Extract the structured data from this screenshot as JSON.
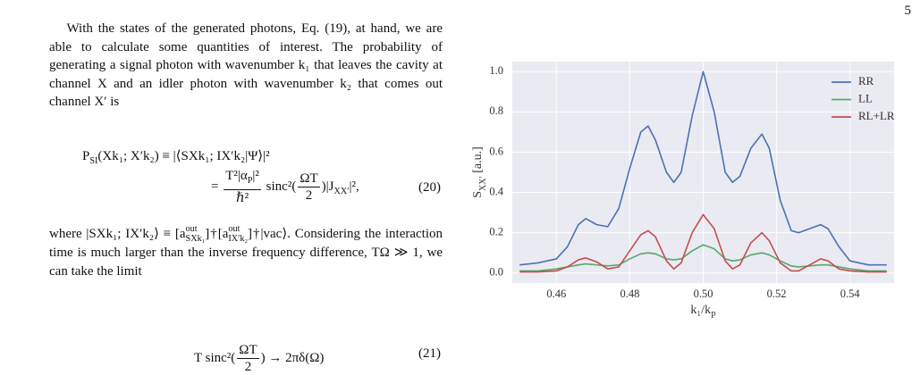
{
  "page_number": "5",
  "paragraphs": [
    "With the states of the generated photons, Eq. (19), at hand, we are able to calculate some quantities of interest. The probability of generating a signal photon with wavenumber k₁ that leaves the cavity at channel X and an idler photon with wavenumber k₂ that comes out channel X′ is",
    [
      "where |SXk₁; IX′k₂⟩ ≡ [a",
      {
        "sup": "out",
        "sub": "SXk₁"
      },
      "]†[a",
      {
        "sup": "out",
        "sub": "IX′k₂"
      },
      "]†|vac⟩. Considering the interaction time is much larger than the inverse frequency difference, TΩ ≫ 1, we can take the limit"
    ]
  ],
  "equations": [
    {
      "lines": [
        [
          "P",
          {
            "sub": "SI"
          },
          "(Xk₁; X′k₂) ≡ |⟨SXk₁; IX′k₂|Ψ⟩|²"
        ],
        [
          "= ",
          {
            "num": [
              "T²|α",
              {
                "sub": "P"
              },
              "|²"
            ],
            "den": "ℏ²"
          },
          " sinc²(",
          {
            "num": "ΩT",
            "den": "2"
          },
          ")|J",
          {
            "sub": "XX′"
          },
          "|²,"
        ]
      ],
      "number": "(20)"
    },
    {
      "lines": [
        [
          "T sinc²(",
          {
            "num": "ΩT",
            "den": "2"
          },
          ") → 2πδ(Ω)"
        ]
      ],
      "number": "(21)"
    }
  ],
  "chart_data": {
    "type": "line",
    "xlabel": [
      "k₁/k",
      {
        "sub": "P"
      }
    ],
    "ylabel": [
      "S",
      {
        "sub": "XX′"
      },
      " [a.u.]"
    ],
    "x": [
      0.45,
      0.455,
      0.46,
      0.463,
      0.466,
      0.468,
      0.471,
      0.474,
      0.477,
      0.48,
      0.483,
      0.485,
      0.487,
      0.49,
      0.492,
      0.494,
      0.497,
      0.5,
      0.503,
      0.506,
      0.508,
      0.51,
      0.513,
      0.516,
      0.518,
      0.521,
      0.524,
      0.526,
      0.529,
      0.532,
      0.534,
      0.537,
      0.54,
      0.545,
      0.55
    ],
    "series": [
      {
        "name": "RR",
        "color": "#4c72b0",
        "values": [
          0.04,
          0.05,
          0.07,
          0.13,
          0.24,
          0.27,
          0.24,
          0.23,
          0.32,
          0.52,
          0.7,
          0.73,
          0.66,
          0.5,
          0.45,
          0.5,
          0.78,
          1.0,
          0.8,
          0.5,
          0.45,
          0.48,
          0.62,
          0.69,
          0.62,
          0.36,
          0.21,
          0.2,
          0.22,
          0.24,
          0.22,
          0.13,
          0.06,
          0.04,
          0.04
        ]
      },
      {
        "name": "LL",
        "color": "#55a868",
        "values": [
          0.01,
          0.01,
          0.02,
          0.03,
          0.04,
          0.045,
          0.04,
          0.035,
          0.04,
          0.07,
          0.095,
          0.1,
          0.095,
          0.07,
          0.065,
          0.07,
          0.11,
          0.14,
          0.12,
          0.07,
          0.06,
          0.065,
          0.09,
          0.1,
          0.09,
          0.06,
          0.035,
          0.03,
          0.035,
          0.04,
          0.04,
          0.03,
          0.02,
          0.01,
          0.01
        ]
      },
      {
        "name": "RL+LR",
        "color": "#c44e52",
        "values": [
          0.005,
          0.005,
          0.01,
          0.03,
          0.065,
          0.075,
          0.055,
          0.02,
          0.03,
          0.11,
          0.19,
          0.21,
          0.18,
          0.06,
          0.02,
          0.05,
          0.2,
          0.29,
          0.22,
          0.06,
          0.02,
          0.04,
          0.15,
          0.2,
          0.16,
          0.05,
          0.01,
          0.01,
          0.04,
          0.07,
          0.06,
          0.02,
          0.01,
          0.005,
          0.005
        ]
      }
    ],
    "xlim": [
      0.448,
      0.552
    ],
    "ylim": [
      -0.05,
      1.05
    ],
    "xticks": [
      0.46,
      0.48,
      {
        "value": 0.5,
        "label": "0.50"
      },
      0.52,
      0.54
    ],
    "yticks": [
      {
        "value": 0,
        "label": "0.0"
      },
      0.2,
      0.4,
      0.6,
      0.8,
      {
        "value": 1,
        "label": "1.0"
      }
    ],
    "grid": true,
    "legend": "upper right"
  }
}
